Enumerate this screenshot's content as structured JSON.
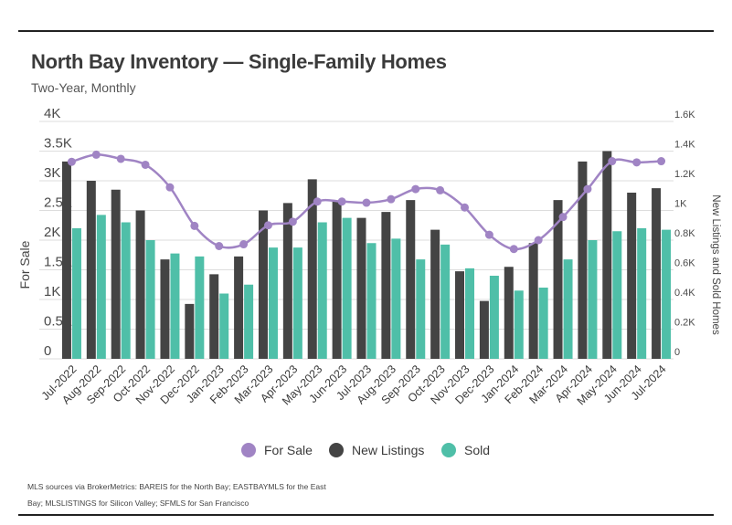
{
  "colors": {
    "for_sale": "#a084c4",
    "new_listings": "#444444",
    "sold": "#4fbfa8",
    "grid": "#dddddd"
  },
  "chart_data": {
    "type": "bar",
    "title": "North Bay Inventory — Single-Family Homes",
    "subtitle": "Two-Year, Monthly",
    "ylabel": "For Sale",
    "y2label": "New Listings and Sold Homes",
    "ylim": [
      0,
      4000
    ],
    "y2lim": [
      0,
      1600
    ],
    "yticks": [
      "0",
      "0.5K",
      "1K",
      "1.5K",
      "2K",
      "2.5K",
      "3K",
      "3.5K",
      "4K"
    ],
    "y2ticks": [
      "0",
      "0.2K",
      "0.4K",
      "0.6K",
      "0.8K",
      "1K",
      "1.2K",
      "1.4K",
      "1.6K"
    ],
    "legend_position": "bottom",
    "grid": true,
    "categories": [
      "Jul-2022",
      "Aug-2022",
      "Sep-2022",
      "Oct-2022",
      "Nov-2022",
      "Dec-2022",
      "Jan-2023",
      "Feb-2023",
      "Mar-2023",
      "Apr-2023",
      "May-2023",
      "Jun-2023",
      "Jul-2023",
      "Aug-2023",
      "Sep-2023",
      "Oct-2023",
      "Nov-2023",
      "Dec-2023",
      "Jan-2024",
      "Feb-2024",
      "Mar-2024",
      "Apr-2024",
      "May-2024",
      "Jun-2024",
      "Jul-2024"
    ],
    "series": [
      {
        "name": "For Sale",
        "kind": "line",
        "axis": "left",
        "values": [
          3320,
          3440,
          3370,
          3270,
          2890,
          2240,
          1900,
          1930,
          2250,
          2310,
          2650,
          2650,
          2630,
          2690,
          2860,
          2840,
          2550,
          2090,
          1850,
          2000,
          2390,
          2860,
          3330,
          3310,
          3330
        ]
      },
      {
        "name": "New Listings",
        "kind": "bar",
        "axis": "right",
        "values": [
          1330,
          1200,
          1140,
          1000,
          670,
          370,
          570,
          690,
          1000,
          1050,
          1210,
          1060,
          950,
          990,
          1070,
          870,
          590,
          390,
          620,
          780,
          1070,
          1330,
          1400,
          1120,
          1150
        ]
      },
      {
        "name": "Sold",
        "kind": "bar",
        "axis": "right",
        "values": [
          880,
          970,
          920,
          800,
          710,
          690,
          440,
          500,
          750,
          750,
          920,
          950,
          780,
          810,
          670,
          770,
          610,
          560,
          460,
          480,
          670,
          800,
          860,
          880,
          870
        ]
      }
    ]
  },
  "footnote": "MLS sources via BrokerMetrics: BAREIS for the North Bay; EASTBAYMLS for the East Bay; MLSLISTINGS for Silicon Valley; SFMLS for San Francisco"
}
